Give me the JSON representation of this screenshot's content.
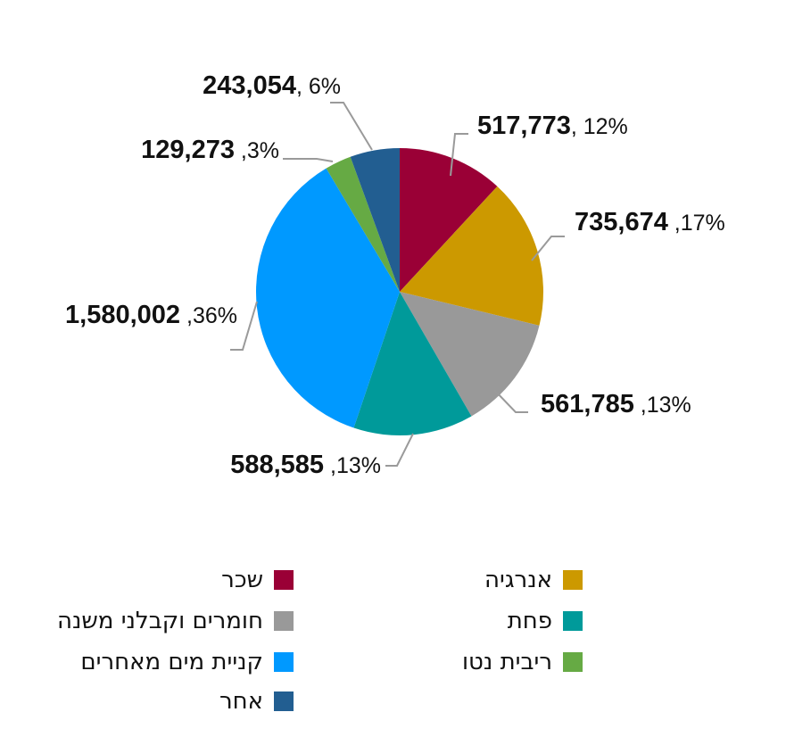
{
  "chart_data": {
    "type": "pie",
    "slices": [
      {
        "name": "שכר",
        "value": 517773,
        "value_label": "517,773",
        "pct_label": ", 12%",
        "color": "#9a0036"
      },
      {
        "name": "אנרגיה",
        "value": 735674,
        "value_label": "735,674",
        "pct_label": " ,17%",
        "color": "#cc9900"
      },
      {
        "name": "חומרים וקבלני משנה",
        "value": 561785,
        "value_label": "561,785",
        "pct_label": " ,13%",
        "color": "#999999"
      },
      {
        "name": "פחת",
        "value": 588585,
        "value_label": "588,585",
        "pct_label": " ,13%",
        "color": "#009a9a"
      },
      {
        "name": "קניית מים מאחרים",
        "value": 1580002,
        "value_label": "1,580,002",
        "pct_label": " ,36%",
        "color": "#0099ff"
      },
      {
        "name": "ריבית נטו",
        "value": 129273,
        "value_label": "129,273",
        "pct_label": " ,3%",
        "color": "#66aa44"
      },
      {
        "name": "אחר",
        "value": 243054,
        "value_label": "243,054",
        "pct_label": ", 6%",
        "color": "#225e91"
      }
    ]
  },
  "legend": [
    {
      "label": "שכר",
      "color": "#9a0036"
    },
    {
      "label": "אנרגיה",
      "color": "#cc9900"
    },
    {
      "label": "חומרים וקבלני משנה",
      "color": "#999999"
    },
    {
      "label": "פחת",
      "color": "#009a9a"
    },
    {
      "label": "קניית מים מאחרים",
      "color": "#0099ff"
    },
    {
      "label": "ריבית נטו",
      "color": "#66aa44"
    },
    {
      "label": "אחר",
      "color": "#225e91"
    }
  ]
}
